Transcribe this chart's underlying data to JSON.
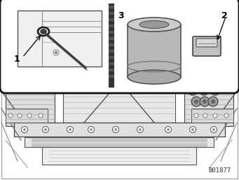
{
  "fig_width": 3.41,
  "fig_height": 2.57,
  "dpi": 100,
  "bg_color": "#ffffff",
  "code_text": "B01877",
  "label_1": "1",
  "label_2": "2",
  "label_3": "3",
  "label_fontsize": 9,
  "code_fontsize": 6.5,
  "inset_bg": "#ffffff",
  "engine_bg": "#f5f5f5",
  "border_color": "#111111",
  "gray1": "#aaaaaa",
  "gray2": "#cccccc",
  "gray3": "#888888",
  "dark": "#333333",
  "mid": "#999999",
  "light": "#dddddd"
}
